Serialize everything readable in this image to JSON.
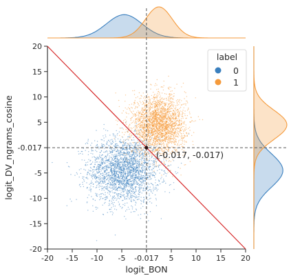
{
  "chart_data": {
    "type": "scatter",
    "xlabel": "logit_BON",
    "ylabel": "logit_DV_ngrams_cosine",
    "xlim": [
      -20,
      20
    ],
    "ylim": [
      -20,
      20
    ],
    "x_ticks": [
      -20,
      -15,
      -10,
      -5,
      5,
      10,
      15,
      20
    ],
    "x_tick_labels": [
      "-20",
      "-15",
      "-10",
      "-5",
      "5",
      "10",
      "15",
      "20"
    ],
    "y_ticks": [
      -20,
      -15,
      -10,
      -5,
      5,
      10,
      15,
      20
    ],
    "y_tick_labels": [
      "-20",
      "-15",
      "-10",
      "-5",
      "5",
      "10",
      "15",
      "20"
    ],
    "special_tick": {
      "value": -0.017,
      "label": "-0.017"
    },
    "grid": false,
    "legend": {
      "title": "label",
      "placement": "top-right",
      "entries": [
        {
          "label": "0",
          "color": "#3a7fbe"
        },
        {
          "label": "1",
          "color": "#f59a3b"
        }
      ]
    },
    "series": [
      {
        "name": "0",
        "color": "#3a7fbe",
        "center_x": -4.5,
        "center_y": -4.5,
        "spread_x": 3.6,
        "spread_y": 3.3
      },
      {
        "name": "1",
        "color": "#f59a3b",
        "center_x": 2.5,
        "center_y": 4.5,
        "spread_x": 2.7,
        "spread_y": 2.9
      }
    ],
    "threshold_point": {
      "x": -0.017,
      "y": -0.017,
      "label": "(-0.017, -0.017)"
    },
    "decision_line": {
      "x1": -20,
      "y1": 20,
      "x2": 20,
      "y2": -20,
      "color": "#d62728"
    },
    "marginal_x": [
      {
        "name": "0",
        "center": -4.5,
        "spread": 3.6
      },
      {
        "name": "1",
        "center": 2.5,
        "spread": 2.7
      }
    ],
    "marginal_y": [
      {
        "name": "0",
        "center": -4.5,
        "spread": 3.3
      },
      {
        "name": "1",
        "center": 4.5,
        "spread": 2.9
      }
    ]
  }
}
